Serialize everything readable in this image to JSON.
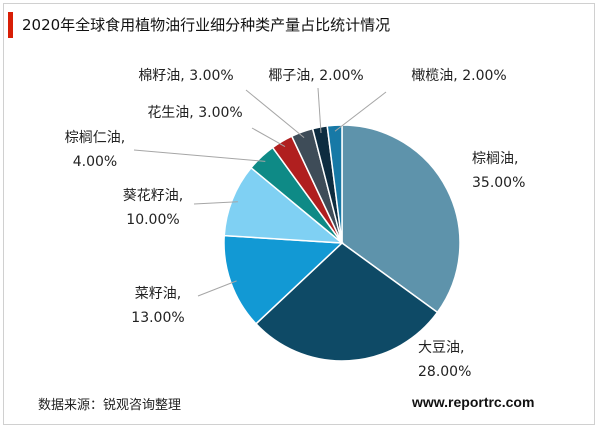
{
  "title": "2020年全球食用植物油行业细分种类产量占比统计情况",
  "source": "数据来源：锐观咨询整理",
  "website": "www.reportrc.com",
  "chart_data": {
    "type": "pie",
    "title": "2020年全球食用植物油行业细分种类产量占比统计情况",
    "slices": [
      {
        "name": "棕榈油",
        "value": 35.0,
        "label": "35.00%",
        "color": "#5e93ab"
      },
      {
        "name": "大豆油",
        "value": 28.0,
        "label": "28.00%",
        "color": "#0e4a66"
      },
      {
        "name": "菜籽油",
        "value": 13.0,
        "label": "13.00%",
        "color": "#1299d4"
      },
      {
        "name": "葵花籽油",
        "value": 10.0,
        "label": "10.00%",
        "color": "#7fd0f3"
      },
      {
        "name": "棕榈仁油",
        "value": 4.0,
        "label": "4.00%",
        "color": "#0e8a86"
      },
      {
        "name": "花生油",
        "value": 3.0,
        "label": "3.00%",
        "color": "#b01f1f"
      },
      {
        "name": "棉籽油",
        "value": 3.0,
        "label": "3.00%",
        "color": "#3e4c58"
      },
      {
        "name": "椰子油",
        "value": 2.0,
        "label": "2.00%",
        "color": "#0d2c40"
      },
      {
        "name": "橄榄油",
        "value": 2.0,
        "label": "2.00%",
        "color": "#1779a6"
      }
    ]
  }
}
